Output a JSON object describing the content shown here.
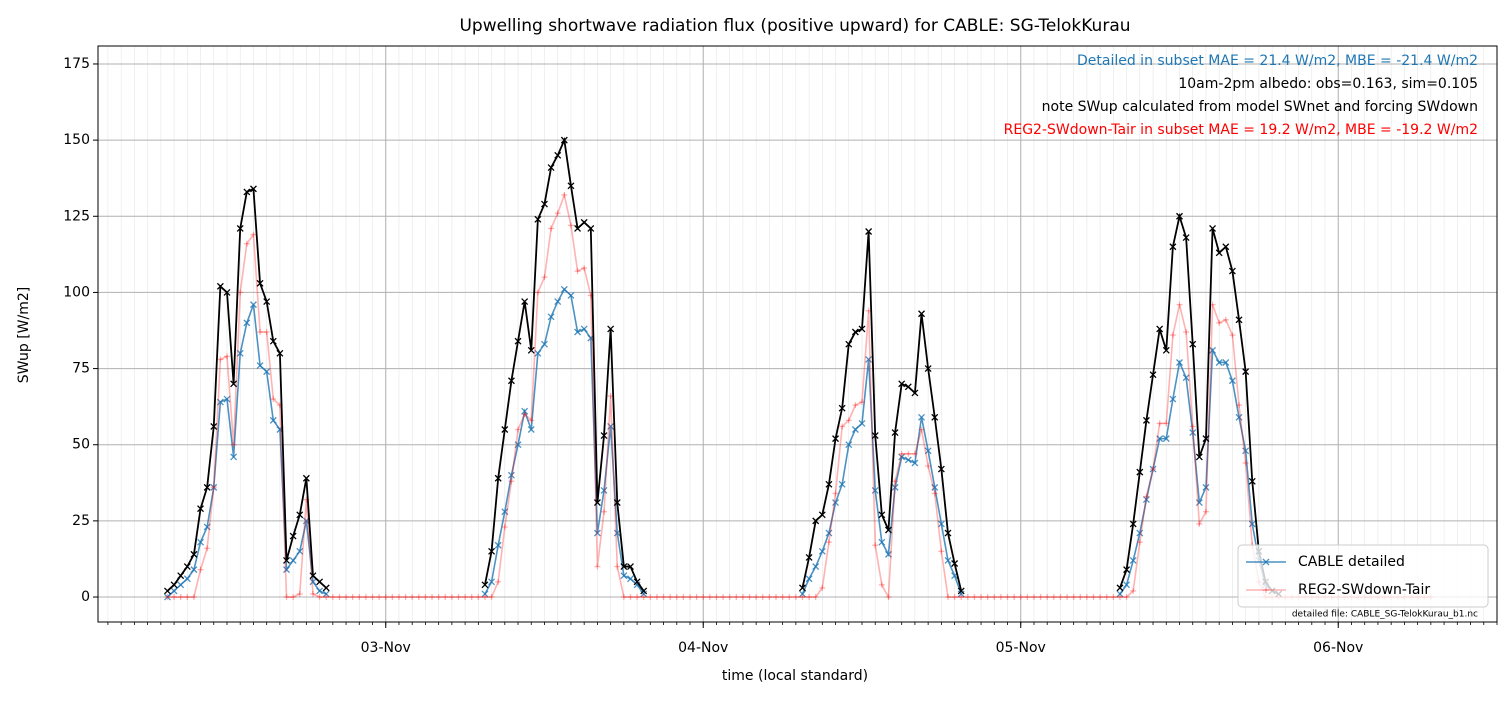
{
  "chart_data": {
    "type": "line",
    "title": "Upwelling shortwave radiation flux (positive upward) for CABLE: SG-TelokKurau",
    "xlabel": "time (local standard)",
    "ylabel": "SWup [W/m2]",
    "annotations": [
      {
        "text": "Detailed in subset MAE = 21.4 W/m2, MBE = -21.4 W/m2",
        "color": "#1f77b4"
      },
      {
        "text": "10am-2pm albedo: obs=0.163, sim=0.105",
        "color": "#000000"
      },
      {
        "text": "note SWup calculated from model SWnet and forcing SWdown",
        "color": "#000000"
      },
      {
        "text": "REG2-SWdown-Tair in subset MAE = 19.2 W/m2, MBE = -19.2 W/m2",
        "color": "#ff0000"
      }
    ],
    "footnote": "detailed file: CABLE_SG-TelokKurau_b1.nc",
    "xlim": [
      "02-Nov 02:15",
      "06-Nov 12:00"
    ],
    "xticks": [
      {
        "value": "03-Nov 00:00",
        "label": "03-Nov"
      },
      {
        "value": "04-Nov 00:00",
        "label": "04-Nov"
      },
      {
        "value": "05-Nov 00:00",
        "label": "05-Nov"
      },
      {
        "value": "06-Nov 00:00",
        "label": "06-Nov"
      }
    ],
    "ylim": [
      -8.2,
      180.9
    ],
    "yticks": [
      0,
      25,
      50,
      75,
      100,
      125,
      150,
      175
    ],
    "grid": true,
    "legend": "lower right",
    "x": [
      "02-Nov 07:30",
      "02-Nov 08:00",
      "02-Nov 08:30",
      "02-Nov 09:00",
      "02-Nov 09:30",
      "02-Nov 10:00",
      "02-Nov 10:30",
      "02-Nov 11:00",
      "02-Nov 11:30",
      "02-Nov 12:00",
      "02-Nov 12:30",
      "02-Nov 13:00",
      "02-Nov 13:30",
      "02-Nov 14:00",
      "02-Nov 14:30",
      "02-Nov 15:00",
      "02-Nov 15:30",
      "02-Nov 16:00",
      "02-Nov 16:30",
      "02-Nov 17:00",
      "02-Nov 17:30",
      "02-Nov 18:00",
      "02-Nov 18:30",
      "02-Nov 19:00",
      "02-Nov 19:30",
      "02-Nov 20:00",
      "02-Nov 20:30",
      "02-Nov 21:00",
      "02-Nov 21:30",
      "02-Nov 22:00",
      "02-Nov 22:30",
      "02-Nov 23:00",
      "02-Nov 23:30",
      "03-Nov 00:00",
      "03-Nov 00:30",
      "03-Nov 01:00",
      "03-Nov 01:30",
      "03-Nov 02:00",
      "03-Nov 02:30",
      "03-Nov 03:00",
      "03-Nov 03:30",
      "03-Nov 04:00",
      "03-Nov 04:30",
      "03-Nov 05:00",
      "03-Nov 05:30",
      "03-Nov 06:00",
      "03-Nov 06:30",
      "03-Nov 07:00",
      "03-Nov 07:30",
      "03-Nov 08:00",
      "03-Nov 08:30",
      "03-Nov 09:00",
      "03-Nov 09:30",
      "03-Nov 10:00",
      "03-Nov 10:30",
      "03-Nov 11:00",
      "03-Nov 11:30",
      "03-Nov 12:00",
      "03-Nov 12:30",
      "03-Nov 13:00",
      "03-Nov 13:30",
      "03-Nov 14:00",
      "03-Nov 14:30",
      "03-Nov 15:00",
      "03-Nov 15:30",
      "03-Nov 16:00",
      "03-Nov 16:30",
      "03-Nov 17:00",
      "03-Nov 17:30",
      "03-Nov 18:00",
      "03-Nov 18:30",
      "03-Nov 19:00",
      "03-Nov 19:30",
      "03-Nov 20:00",
      "03-Nov 20:30",
      "03-Nov 21:00",
      "03-Nov 21:30",
      "03-Nov 22:00",
      "03-Nov 22:30",
      "03-Nov 23:00",
      "03-Nov 23:30",
      "04-Nov 00:00",
      "04-Nov 00:30",
      "04-Nov 01:00",
      "04-Nov 01:30",
      "04-Nov 02:00",
      "04-Nov 02:30",
      "04-Nov 03:00",
      "04-Nov 03:30",
      "04-Nov 04:00",
      "04-Nov 04:30",
      "04-Nov 05:00",
      "04-Nov 05:30",
      "04-Nov 06:00",
      "04-Nov 06:30",
      "04-Nov 07:00",
      "04-Nov 07:30",
      "04-Nov 08:00",
      "04-Nov 08:30",
      "04-Nov 09:00",
      "04-Nov 09:30",
      "04-Nov 10:00",
      "04-Nov 10:30",
      "04-Nov 11:00",
      "04-Nov 11:30",
      "04-Nov 12:00",
      "04-Nov 12:30",
      "04-Nov 13:00",
      "04-Nov 13:30",
      "04-Nov 14:00",
      "04-Nov 14:30",
      "04-Nov 15:00",
      "04-Nov 15:30",
      "04-Nov 16:00",
      "04-Nov 16:30",
      "04-Nov 17:00",
      "04-Nov 17:30",
      "04-Nov 18:00",
      "04-Nov 18:30",
      "04-Nov 19:00",
      "04-Nov 19:30",
      "04-Nov 20:00",
      "04-Nov 20:30",
      "04-Nov 21:00",
      "04-Nov 21:30",
      "04-Nov 22:00",
      "04-Nov 22:30",
      "04-Nov 23:00",
      "04-Nov 23:30",
      "05-Nov 00:00",
      "05-Nov 00:30",
      "05-Nov 01:00",
      "05-Nov 01:30",
      "05-Nov 02:00",
      "05-Nov 02:30",
      "05-Nov 03:00",
      "05-Nov 03:30",
      "05-Nov 04:00",
      "05-Nov 04:30",
      "05-Nov 05:00",
      "05-Nov 05:30",
      "05-Nov 06:00",
      "05-Nov 06:30",
      "05-Nov 07:00",
      "05-Nov 07:30",
      "05-Nov 08:00",
      "05-Nov 08:30",
      "05-Nov 09:00",
      "05-Nov 09:30",
      "05-Nov 10:00",
      "05-Nov 10:30",
      "05-Nov 11:00",
      "05-Nov 11:30",
      "05-Nov 12:00",
      "05-Nov 12:30",
      "05-Nov 13:00",
      "05-Nov 13:30",
      "05-Nov 14:00",
      "05-Nov 14:30",
      "05-Nov 15:00",
      "05-Nov 15:30",
      "05-Nov 16:00",
      "05-Nov 16:30",
      "05-Nov 17:00",
      "05-Nov 17:30",
      "05-Nov 18:00",
      "05-Nov 18:30",
      "05-Nov 19:00",
      "05-Nov 19:30",
      "05-Nov 20:00",
      "05-Nov 20:30",
      "05-Nov 21:00",
      "05-Nov 21:30",
      "05-Nov 22:00",
      "05-Nov 22:30",
      "05-Nov 23:00",
      "05-Nov 23:30",
      "06-Nov 00:00",
      "06-Nov 00:30",
      "06-Nov 01:00",
      "06-Nov 01:30",
      "06-Nov 02:00",
      "06-Nov 02:30",
      "06-Nov 03:00",
      "06-Nov 03:30",
      "06-Nov 04:00",
      "06-Nov 04:30",
      "06-Nov 05:00",
      "06-Nov 05:30",
      "06-Nov 06:00",
      "06-Nov 06:30",
      "06-Nov 07:00"
    ],
    "series": [
      {
        "name": "CABLE detailed",
        "color": "#1f77b4",
        "alpha": 0.8,
        "marker": "x",
        "values": [
          0,
          2,
          4,
          6,
          9,
          18,
          23,
          36,
          64,
          65,
          46,
          80,
          90,
          96,
          76,
          74,
          58,
          55,
          9,
          12,
          15,
          25,
          5,
          2,
          1,
          null,
          null,
          null,
          null,
          null,
          null,
          null,
          null,
          null,
          null,
          null,
          null,
          null,
          null,
          null,
          null,
          null,
          null,
          null,
          null,
          null,
          null,
          null,
          1,
          5,
          17,
          28,
          40,
          50,
          61,
          55,
          80,
          83,
          92,
          97,
          101,
          99,
          87,
          88,
          85,
          21,
          35,
          56,
          21,
          7,
          6,
          4,
          1,
          null,
          null,
          null,
          null,
          null,
          null,
          null,
          null,
          null,
          null,
          null,
          null,
          null,
          null,
          null,
          null,
          null,
          null,
          null,
          null,
          null,
          null,
          null,
          1,
          6,
          10,
          15,
          21,
          31,
          37,
          50,
          55,
          57,
          78,
          35,
          18,
          14,
          36,
          46,
          45,
          44,
          59,
          48,
          36,
          24,
          12,
          7,
          1,
          null,
          null,
          null,
          null,
          null,
          null,
          null,
          null,
          null,
          null,
          null,
          null,
          null,
          null,
          null,
          null,
          null,
          null,
          null,
          null,
          null,
          null,
          null,
          1,
          4,
          12,
          21,
          32,
          42,
          52,
          52,
          65,
          77,
          72,
          54,
          31,
          36,
          81,
          77,
          77,
          71,
          59,
          48,
          24,
          12,
          4,
          2,
          1,
          null,
          null,
          null,
          null,
          null,
          null,
          null,
          null,
          null,
          null,
          null,
          null,
          null,
          null,
          null,
          null,
          null,
          null,
          null,
          null,
          null,
          null,
          null
        ]
      },
      {
        "name": "REG2-SWdown-Tair",
        "color": "#ff0000",
        "alpha": 0.3,
        "marker": "+",
        "values": [
          0,
          0,
          0,
          0,
          0,
          9,
          16,
          36,
          78,
          79,
          50,
          100,
          116,
          119,
          87,
          87,
          65,
          63,
          0,
          0,
          1,
          32,
          1,
          0,
          0,
          0,
          0,
          0,
          0,
          0,
          0,
          0,
          0,
          0,
          0,
          0,
          0,
          0,
          0,
          0,
          0,
          0,
          0,
          0,
          0,
          0,
          0,
          0,
          0,
          0,
          5,
          23,
          38,
          55,
          60,
          58,
          100,
          105,
          121,
          126,
          132,
          122,
          107,
          108,
          99,
          10,
          28,
          66,
          10,
          0,
          0,
          0,
          0,
          0,
          0,
          0,
          0,
          0,
          0,
          0,
          0,
          0,
          0,
          0,
          0,
          0,
          0,
          0,
          0,
          0,
          0,
          0,
          0,
          0,
          0,
          0,
          0,
          0,
          0,
          3,
          18,
          34,
          56,
          58,
          63,
          64,
          94,
          17,
          4,
          0,
          38,
          47,
          47,
          47,
          55,
          43,
          34,
          15,
          0,
          0,
          0,
          0,
          0,
          0,
          0,
          0,
          0,
          0,
          0,
          0,
          0,
          0,
          0,
          0,
          0,
          0,
          0,
          0,
          0,
          0,
          0,
          0,
          0,
          0,
          0,
          0,
          2,
          18,
          33,
          42,
          57,
          57,
          86,
          96,
          87,
          56,
          24,
          28,
          96,
          90,
          91,
          86,
          63,
          44,
          17,
          5,
          0,
          0,
          0,
          0,
          0,
          0,
          0,
          0,
          0,
          0,
          0,
          0,
          0,
          0,
          0,
          0,
          0,
          0,
          0,
          0,
          0,
          0,
          0,
          0,
          0,
          0
        ]
      },
      {
        "color": "#000000",
        "alpha": 1,
        "marker": "x",
        "values": [
          2,
          4,
          7,
          10,
          14,
          29,
          36,
          56,
          102,
          100,
          70,
          121,
          133,
          134,
          103,
          97,
          84,
          80,
          12,
          20,
          27,
          39,
          7,
          5,
          3,
          null,
          null,
          null,
          null,
          null,
          null,
          null,
          null,
          null,
          null,
          null,
          null,
          null,
          null,
          null,
          null,
          null,
          null,
          null,
          null,
          null,
          null,
          null,
          4,
          15,
          39,
          55,
          71,
          84,
          97,
          81,
          124,
          129,
          141,
          145,
          150,
          135,
          121,
          123,
          121,
          31,
          53,
          88,
          31,
          10,
          10,
          5,
          2,
          null,
          null,
          null,
          null,
          null,
          null,
          null,
          null,
          null,
          null,
          null,
          null,
          null,
          null,
          null,
          null,
          null,
          null,
          null,
          null,
          null,
          null,
          null,
          3,
          13,
          25,
          27,
          37,
          52,
          62,
          83,
          87,
          88,
          120,
          53,
          27,
          22,
          54,
          70,
          69,
          67,
          93,
          75,
          59,
          42,
          21,
          11,
          2,
          null,
          null,
          null,
          null,
          null,
          null,
          null,
          null,
          null,
          null,
          null,
          null,
          null,
          null,
          null,
          null,
          null,
          null,
          null,
          null,
          null,
          null,
          null,
          3,
          9,
          24,
          41,
          58,
          73,
          88,
          81,
          115,
          125,
          118,
          83,
          46,
          52,
          121,
          113,
          115,
          107,
          91,
          74,
          38,
          15,
          5,
          2,
          1,
          null,
          null,
          null,
          null,
          null,
          null,
          null,
          null,
          null,
          null,
          null,
          null,
          null,
          null,
          null,
          null,
          null,
          null,
          null,
          null,
          null,
          null,
          null
        ]
      }
    ]
  }
}
